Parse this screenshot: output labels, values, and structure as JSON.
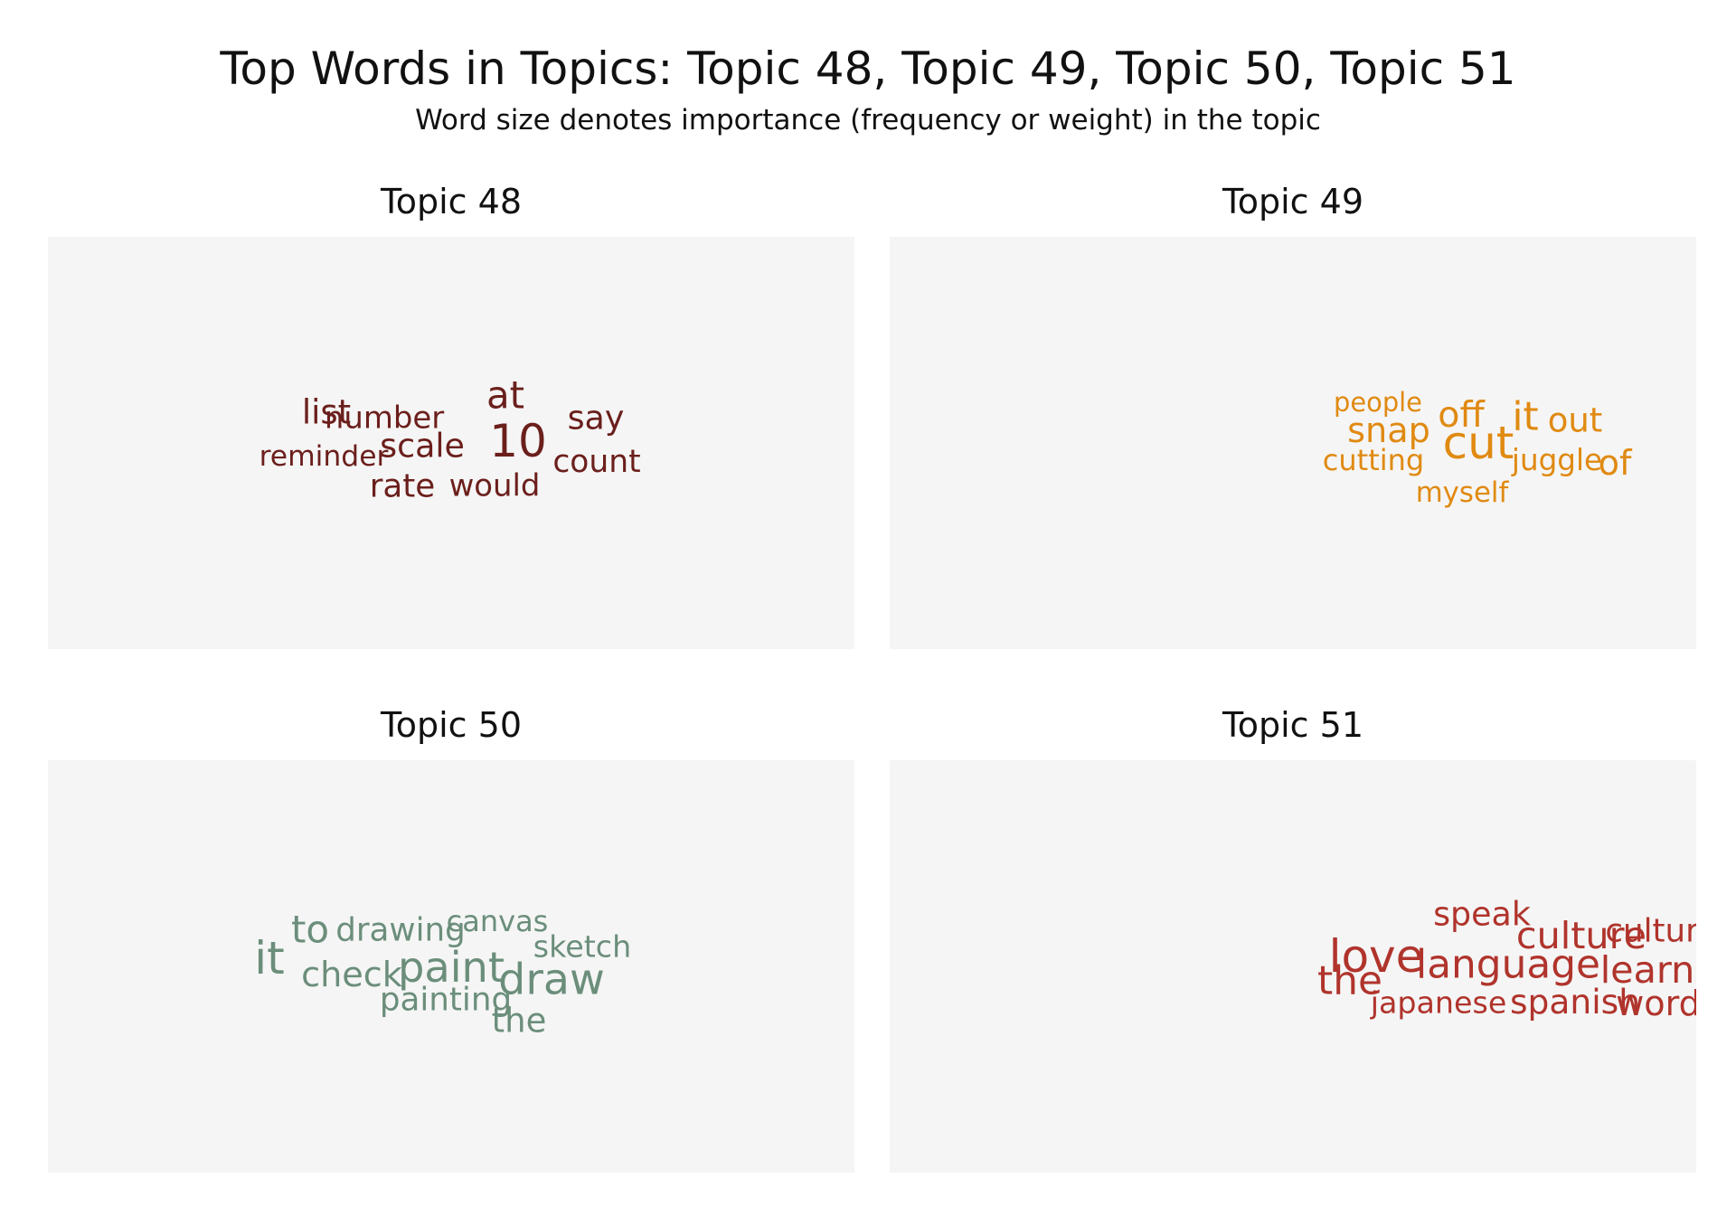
{
  "title": "Top Words in Topics: Topic 48, Topic 49, Topic 50, Topic 51",
  "subtitle": "Word size denotes importance (frequency or weight) in the topic",
  "chart_data": [
    {
      "type": "wordcloud",
      "title": "Topic 48",
      "color": "#6b1f1c",
      "words": [
        {
          "text": "10",
          "weight": 1.0
        },
        {
          "text": "at",
          "weight": 0.74
        },
        {
          "text": "list",
          "weight": 0.58
        },
        {
          "text": "say",
          "weight": 0.56
        },
        {
          "text": "scale",
          "weight": 0.56
        },
        {
          "text": "rate",
          "weight": 0.54
        },
        {
          "text": "count",
          "weight": 0.5
        },
        {
          "text": "would",
          "weight": 0.48
        },
        {
          "text": "number",
          "weight": 0.48
        },
        {
          "text": "reminder",
          "weight": 0.4
        }
      ]
    },
    {
      "type": "wordcloud",
      "title": "Topic 49",
      "color": "#e08a12",
      "words": [
        {
          "text": "cut",
          "weight": 1.0
        },
        {
          "text": "it",
          "weight": 0.8
        },
        {
          "text": "off",
          "weight": 0.66
        },
        {
          "text": "snap",
          "weight": 0.62
        },
        {
          "text": "of",
          "weight": 0.62
        },
        {
          "text": "out",
          "weight": 0.58
        },
        {
          "text": "juggle",
          "weight": 0.44
        },
        {
          "text": "cutting",
          "weight": 0.42
        },
        {
          "text": "myself",
          "weight": 0.38
        },
        {
          "text": "people",
          "weight": 0.32
        }
      ]
    },
    {
      "type": "wordcloud",
      "title": "Topic 50",
      "color": "#6b8e7b",
      "words": [
        {
          "text": "it",
          "weight": 1.0
        },
        {
          "text": "draw",
          "weight": 0.92
        },
        {
          "text": "paint",
          "weight": 0.88
        },
        {
          "text": "to",
          "weight": 0.74
        },
        {
          "text": "check",
          "weight": 0.62
        },
        {
          "text": "the",
          "weight": 0.58
        },
        {
          "text": "painting",
          "weight": 0.54
        },
        {
          "text": "drawing",
          "weight": 0.54
        },
        {
          "text": "sketch",
          "weight": 0.46
        },
        {
          "text": "canvas",
          "weight": 0.42
        }
      ]
    },
    {
      "type": "wordcloud",
      "title": "Topic 51",
      "color": "#b0342c",
      "words": [
        {
          "text": "love",
          "weight": 1.0
        },
        {
          "text": "the",
          "weight": 0.8
        },
        {
          "text": "language",
          "weight": 0.8
        },
        {
          "text": "culture",
          "weight": 0.72
        },
        {
          "text": "learn",
          "weight": 0.72
        },
        {
          "text": "word",
          "weight": 0.62
        },
        {
          "text": "spanish",
          "weight": 0.6
        },
        {
          "text": "speak",
          "weight": 0.56
        },
        {
          "text": "cultural",
          "weight": 0.54
        },
        {
          "text": "japanese",
          "weight": 0.46
        }
      ]
    }
  ]
}
